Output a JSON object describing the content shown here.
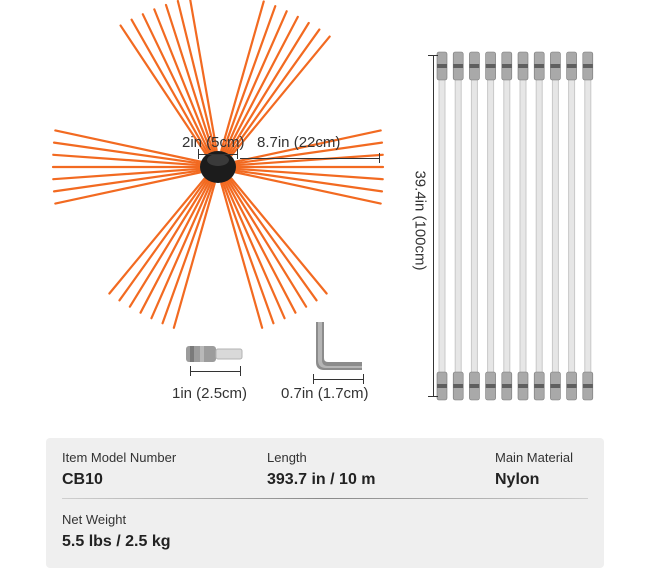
{
  "dimensions": {
    "hub_width": "2in (5cm)",
    "bristle_length": "8.7in (22cm)",
    "rod_length": "39.4in (100cm)",
    "connector_length": "1in (2.5cm)",
    "wrench_size": "0.7in (1.7cm)"
  },
  "specs": {
    "model": {
      "title": "Item Model Number",
      "value": "CB10"
    },
    "length": {
      "title": "Length",
      "value": "393.7 in / 10 m"
    },
    "material": {
      "title": "Main Material",
      "value": "Nylon"
    },
    "weight": {
      "title": "Net Weight",
      "value": "5.5 lbs / 2.5 kg"
    }
  },
  "colors": {
    "bristle": "#f26a21",
    "rod": "#e6e6e6",
    "metal": "#a9a9a9",
    "panel": "#efefef"
  },
  "rod_count": 10
}
